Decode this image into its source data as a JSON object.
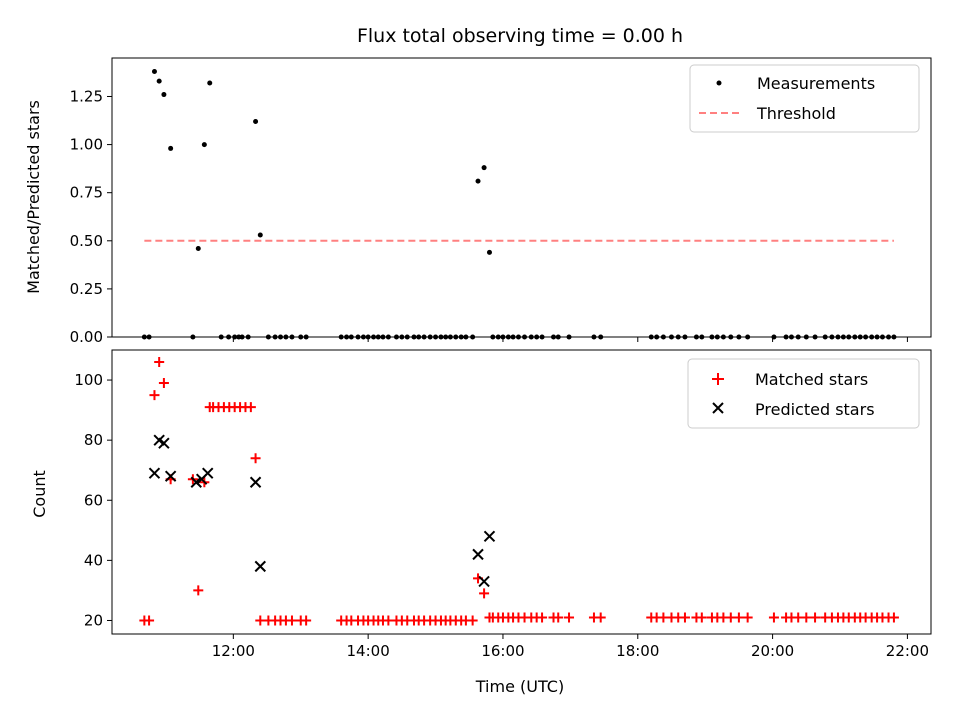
{
  "chart_data": [
    {
      "type": "scatter",
      "title": "Flux total observing time = 0.00 h",
      "xlabel": "",
      "ylabel": "Matched/Predicted stars",
      "xlim_hours": [
        10.2,
        22.35
      ],
      "ylim": [
        0,
        1.45
      ],
      "yticks": [
        0.0,
        0.25,
        0.5,
        0.75,
        1.0,
        1.25
      ],
      "ytick_labels": [
        "0.00",
        "0.25",
        "0.50",
        "0.75",
        "1.00",
        "1.25"
      ],
      "xticks_hours": [
        12,
        14,
        16,
        18,
        20,
        22
      ],
      "legend_position": "top-right",
      "series": [
        {
          "name": "Measurements",
          "marker": "dot",
          "color": "#000000",
          "x_hours": [
            10.68,
            10.75,
            10.83,
            10.9,
            10.97,
            11.07,
            11.4,
            11.48,
            11.57,
            11.65,
            11.82,
            11.93,
            12.02,
            12.08,
            12.13,
            12.22,
            12.33,
            12.4,
            12.52,
            12.62,
            12.7,
            12.78,
            12.87,
            13.0,
            13.08,
            13.6,
            13.68,
            13.75,
            13.85,
            13.93,
            14.0,
            14.08,
            14.15,
            14.22,
            14.3,
            14.42,
            14.5,
            14.58,
            14.68,
            14.75,
            14.83,
            14.92,
            15.0,
            15.08,
            15.15,
            15.22,
            15.3,
            15.38,
            15.45,
            15.55,
            15.63,
            15.72,
            15.8,
            15.85,
            15.93,
            16.0,
            16.08,
            16.15,
            16.23,
            16.32,
            16.42,
            16.5,
            16.58,
            16.75,
            16.82,
            16.98,
            17.35,
            17.45,
            18.2,
            18.28,
            18.38,
            18.5,
            18.6,
            18.7,
            18.87,
            18.95,
            19.1,
            19.18,
            19.27,
            19.38,
            19.5,
            19.63,
            20.02,
            20.2,
            20.28,
            20.38,
            20.5,
            20.63,
            20.78,
            20.88,
            20.97,
            21.05,
            21.13,
            21.22,
            21.3,
            21.38,
            21.47,
            21.55,
            21.63,
            21.72,
            21.8
          ],
          "values": [
            0,
            0,
            1.38,
            1.33,
            1.26,
            0.98,
            0,
            0.46,
            1.0,
            1.32,
            0,
            0,
            0,
            0,
            0,
            0,
            1.12,
            0.53,
            0,
            0,
            0,
            0,
            0,
            0,
            0,
            0,
            0,
            0,
            0,
            0,
            0,
            0,
            0,
            0,
            0,
            0,
            0,
            0,
            0,
            0,
            0,
            0,
            0,
            0,
            0,
            0,
            0,
            0,
            0,
            0,
            0.81,
            0.88,
            0.44,
            0,
            0,
            0,
            0,
            0,
            0,
            0,
            0,
            0,
            0,
            0,
            0,
            0,
            0,
            0,
            0,
            0,
            0,
            0,
            0,
            0,
            0,
            0,
            0,
            0,
            0,
            0,
            0,
            0,
            0,
            0,
            0,
            0,
            0,
            0,
            0,
            0,
            0,
            0,
            0,
            0,
            0,
            0,
            0,
            0,
            0,
            0,
            0
          ]
        },
        {
          "name": "Threshold",
          "marker": "dashed-line",
          "color": "#ff8080",
          "x_hours": [
            10.68,
            21.8
          ],
          "values": [
            0.5,
            0.5
          ]
        }
      ]
    },
    {
      "type": "scatter",
      "title": "",
      "xlabel": "Time (UTC)",
      "ylabel": "Count",
      "xlim_hours": [
        10.2,
        22.35
      ],
      "ylim": [
        15.5,
        110
      ],
      "yticks": [
        20,
        40,
        60,
        80,
        100
      ],
      "ytick_labels": [
        "20",
        "40",
        "60",
        "80",
        "100"
      ],
      "xticks_hours": [
        12,
        14,
        16,
        18,
        20,
        22
      ],
      "xtick_labels": [
        "12:00",
        "14:00",
        "16:00",
        "18:00",
        "20:00",
        "22:00"
      ],
      "legend_position": "top-right",
      "series": [
        {
          "name": "Matched stars",
          "marker": "plus",
          "color": "#ff0000",
          "x_hours": [
            10.68,
            10.75,
            10.83,
            10.9,
            10.97,
            11.07,
            11.4,
            11.48,
            11.57,
            11.65,
            11.7,
            11.78,
            11.86,
            11.94,
            12.02,
            12.1,
            12.18,
            12.26,
            12.33,
            12.4,
            12.52,
            12.62,
            12.7,
            12.78,
            12.87,
            13.0,
            13.08,
            13.6,
            13.68,
            13.75,
            13.85,
            13.93,
            14.0,
            14.08,
            14.15,
            14.22,
            14.3,
            14.42,
            14.5,
            14.58,
            14.68,
            14.75,
            14.83,
            14.92,
            15.0,
            15.08,
            15.15,
            15.22,
            15.3,
            15.38,
            15.45,
            15.55,
            15.63,
            15.72,
            15.8,
            15.85,
            15.93,
            16.0,
            16.08,
            16.15,
            16.23,
            16.32,
            16.42,
            16.5,
            16.58,
            16.75,
            16.82,
            16.98,
            17.35,
            17.45,
            18.2,
            18.28,
            18.38,
            18.5,
            18.6,
            18.7,
            18.87,
            18.95,
            19.1,
            19.18,
            19.27,
            19.38,
            19.5,
            19.63,
            20.02,
            20.2,
            20.28,
            20.38,
            20.5,
            20.63,
            20.78,
            20.88,
            20.97,
            21.05,
            21.13,
            21.22,
            21.3,
            21.38,
            21.47,
            21.55,
            21.63,
            21.72,
            21.8
          ],
          "values": [
            20,
            20,
            95,
            106,
            99,
            67,
            67,
            30,
            66,
            91,
            91,
            91,
            91,
            91,
            91,
            91,
            91,
            91,
            74,
            20,
            20,
            20,
            20,
            20,
            20,
            20,
            20,
            20,
            20,
            20,
            20,
            20,
            20,
            20,
            20,
            20,
            20,
            20,
            20,
            20,
            20,
            20,
            20,
            20,
            20,
            20,
            20,
            20,
            20,
            20,
            20,
            20,
            34,
            29,
            21,
            21,
            21,
            21,
            21,
            21,
            21,
            21,
            21,
            21,
            21,
            21,
            21,
            21,
            21,
            21,
            21,
            21,
            21,
            21,
            21,
            21,
            21,
            21,
            21,
            21,
            21,
            21,
            21,
            21,
            21,
            21,
            21,
            21,
            21,
            21,
            21,
            21,
            21,
            21,
            21,
            21,
            21,
            21,
            21,
            21,
            21,
            21,
            21
          ]
        },
        {
          "name": "Predicted stars",
          "marker": "x",
          "color": "#000000",
          "x_hours": [
            10.83,
            10.9,
            10.97,
            11.07,
            11.45,
            11.53,
            11.62,
            12.33,
            12.4,
            15.63,
            15.72,
            15.8
          ],
          "values": [
            69,
            80,
            79,
            68,
            66,
            67,
            69,
            66,
            38,
            42,
            33,
            48
          ]
        }
      ]
    }
  ]
}
